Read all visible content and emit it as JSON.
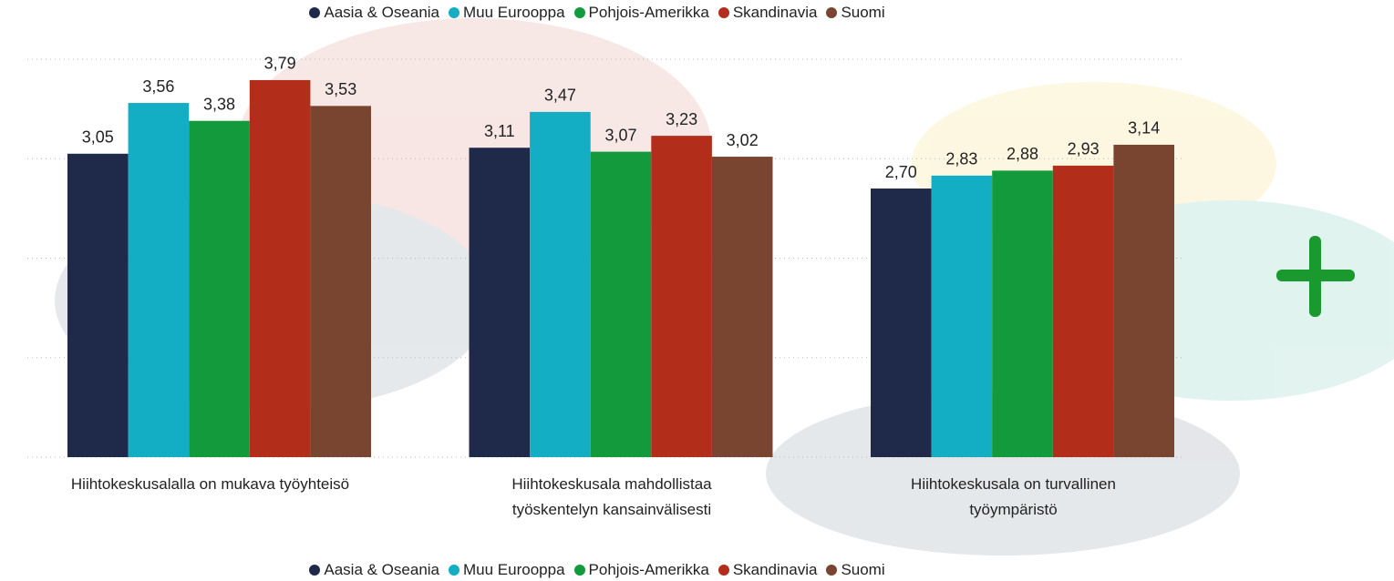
{
  "chart_data": {
    "type": "bar",
    "categories": [
      "Hiihtokeskusalalla on mukava työyhteisö",
      "Hiihtokeskusala mahdollistaa työskentelyn kansainvälisesti",
      "Hiihtokeskusala on turvallinen työympäristö"
    ],
    "series": [
      {
        "name": "Aasia & Oseania",
        "color": "#1f2a4a",
        "values": [
          3.05,
          3.11,
          2.7
        ],
        "value_labels": [
          "3,05",
          "3,11",
          "2,70"
        ]
      },
      {
        "name": "Muu Eurooppa",
        "color": "#13adc4",
        "values": [
          3.56,
          3.47,
          2.83
        ],
        "value_labels": [
          "3,56",
          "3,47",
          "2,83"
        ]
      },
      {
        "name": "Pohjois-Amerikka",
        "color": "#129a3c",
        "values": [
          3.38,
          3.07,
          2.88
        ],
        "value_labels": [
          "3,38",
          "3,07",
          "2,88"
        ]
      },
      {
        "name": "Skandinavia",
        "color": "#b22e1a",
        "values": [
          3.79,
          3.23,
          2.93
        ],
        "value_labels": [
          "3,79",
          "3,23",
          "2,93"
        ]
      },
      {
        "name": "Suomi",
        "color": "#7a4530",
        "values": [
          3.53,
          3.02,
          3.14
        ],
        "value_labels": [
          "3,53",
          "3,02",
          "3,14"
        ]
      }
    ],
    "ylim": [
      0,
      4
    ],
    "yticks": [
      0,
      1,
      2,
      3,
      4
    ],
    "grid": true
  }
}
